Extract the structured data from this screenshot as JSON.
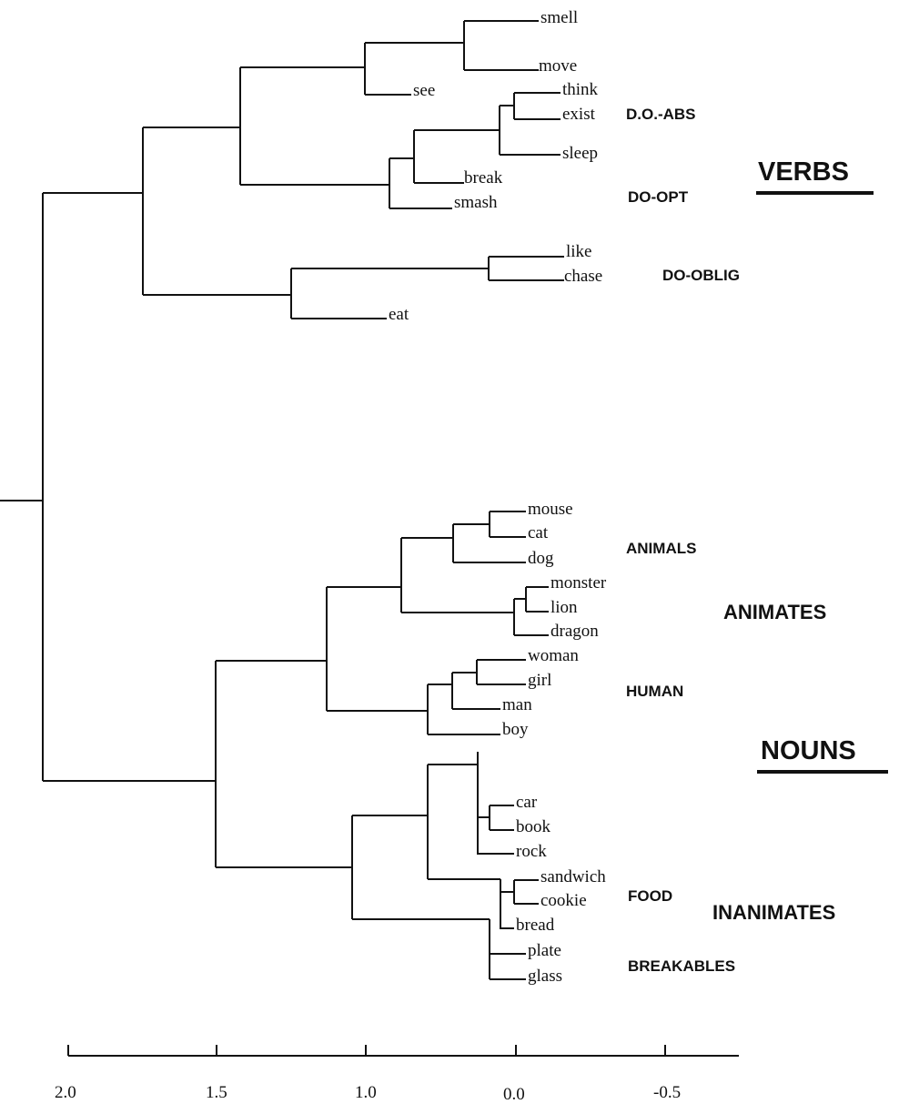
{
  "dendrogram": {
    "leaves": {
      "smell": "smell",
      "move": "move",
      "see": "see",
      "think": "think",
      "exist": "exist",
      "sleep": "sleep",
      "break": "break",
      "smash": "smash",
      "like": "like",
      "chase": "chase",
      "eat": "eat",
      "mouse": "mouse",
      "cat": "cat",
      "dog": "dog",
      "monster": "monster",
      "lion": "lion",
      "dragon": "dragon",
      "woman": "woman",
      "girl": "girl",
      "man": "man",
      "boy": "boy",
      "car": "car",
      "book": "book",
      "rock": "rock",
      "sandwich": "sandwich",
      "cookie": "cookie",
      "bread": "bread",
      "plate": "plate",
      "glass": "glass"
    },
    "group_labels": {
      "do_abs": "D.O.-ABS",
      "do_opt": "DO-OPT",
      "do_oblig": "DO-OBLIG",
      "animals": "ANIMALS",
      "animates": "ANIMATES",
      "human": "HUMAN",
      "food": "FOOD",
      "inanimates": "INANIMATES",
      "breakables": "BREAKABLES"
    },
    "major_labels": {
      "verbs": "VERBS",
      "nouns": "NOUNS"
    },
    "axis": {
      "ticks": [
        "2.0",
        "1.5",
        "1.0",
        "0.0",
        "-0.5"
      ]
    },
    "colors": {
      "ink": "#111111",
      "background": "#ffffff"
    }
  }
}
